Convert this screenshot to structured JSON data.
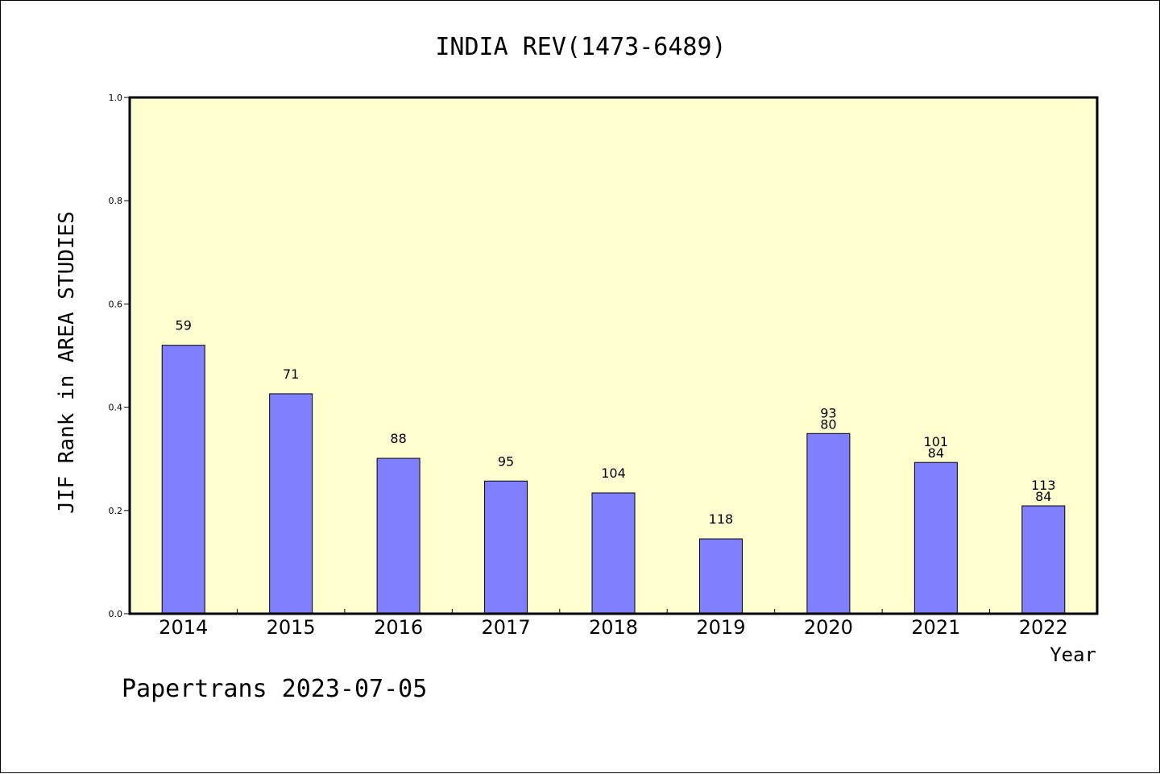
{
  "chart_data": {
    "type": "bar",
    "title": "INDIA REV(1473-6489)",
    "xlabel": "Year",
    "ylabel": "JIF Rank in AREA STUDIES",
    "ylim": [
      0,
      1.0
    ],
    "yticks": [
      "0.0",
      "0.2",
      "0.4",
      "0.6",
      "0.8",
      "1.0"
    ],
    "categories": [
      "2014",
      "2015",
      "2016",
      "2017",
      "2018",
      "2019",
      "2020",
      "2021",
      "2022"
    ],
    "values": [
      0.52,
      0.426,
      0.301,
      0.257,
      0.234,
      0.145,
      0.349,
      0.293,
      0.209
    ],
    "bar_labels": [
      [
        "59"
      ],
      [
        "71"
      ],
      [
        "88"
      ],
      [
        "95"
      ],
      [
        "104"
      ],
      [
        "118"
      ],
      [
        "93",
        "80"
      ],
      [
        "101",
        "84"
      ],
      [
        "113",
        "84"
      ]
    ],
    "grid": false,
    "colors": {
      "plot_background": "#ffffd0",
      "bar_fill": "#8080ff",
      "bar_stroke": "#000000"
    }
  },
  "footer": {
    "text": "Papertrans 2023-07-05"
  }
}
